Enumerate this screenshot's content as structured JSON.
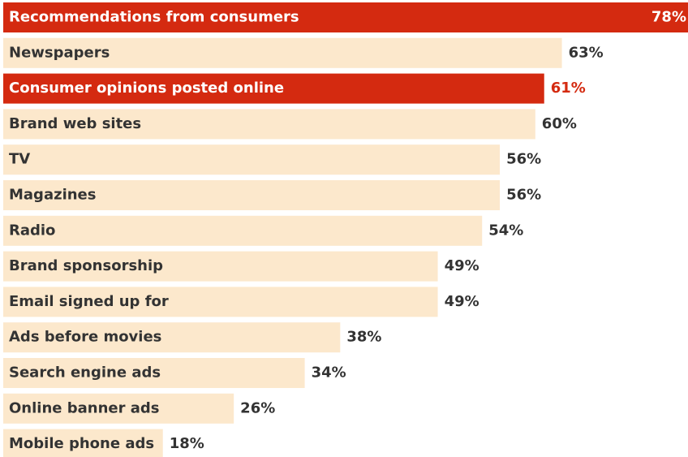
{
  "chart_data": {
    "type": "bar",
    "orientation": "horizontal",
    "categories": [
      "Recommendations from consumers",
      "Newspapers",
      "Consumer opinions posted online",
      "Brand web sites",
      "TV",
      "Magazines",
      "Radio",
      "Brand sponsorship",
      "Email signed up for",
      "Ads before movies",
      "Search engine ads",
      "Online banner ads",
      "Mobile phone ads"
    ],
    "values": [
      78,
      63,
      61,
      60,
      56,
      56,
      54,
      49,
      49,
      38,
      34,
      26,
      18
    ],
    "value_labels": [
      "78%",
      "63%",
      "61%",
      "60%",
      "56%",
      "56%",
      "54%",
      "49%",
      "49%",
      "38%",
      "34%",
      "26%",
      "18%"
    ],
    "colors": [
      "#d42a10",
      "#fce8cc",
      "#d42a10",
      "#fce8cc",
      "#fce8cc",
      "#fce8cc",
      "#fce8cc",
      "#fce8cc",
      "#fce8cc",
      "#fce8cc",
      "#fce8cc",
      "#fce8cc",
      "#fce8cc"
    ]
  }
}
